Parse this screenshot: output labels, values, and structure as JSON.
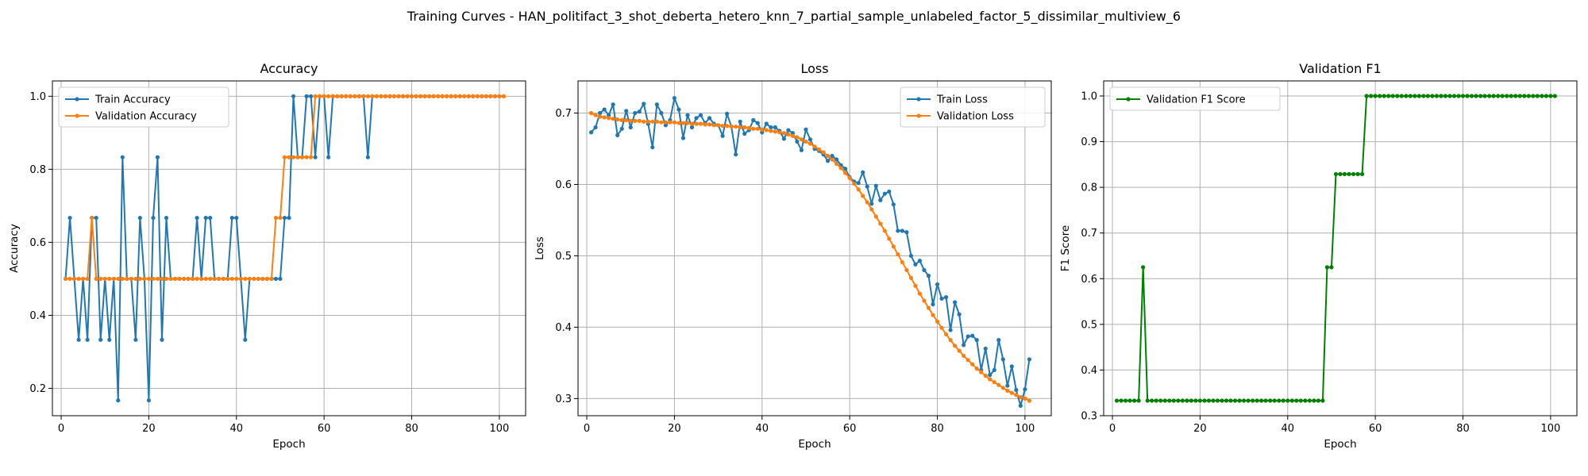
{
  "figure": {
    "suptitle": "Training Curves - HAN_politifact_3_shot_deberta_hetero_knn_7_partial_sample_unlabeled_factor_5_dissimilar_multiview_6"
  },
  "colors": {
    "blue": "#1f77b4",
    "orange": "#ff7f0e",
    "green": "#008000",
    "grid": "#b0b0b0"
  },
  "chart_data": [
    {
      "type": "line",
      "title": "Accuracy",
      "xlabel": "Epoch",
      "ylabel": "Accuracy",
      "xlim": [
        -2.0,
        106.0
      ],
      "ylim": [
        0.125,
        1.042
      ],
      "xticks": [
        0,
        20,
        40,
        60,
        80,
        100
      ],
      "yticks": [
        0.2,
        0.4,
        0.6,
        0.8,
        1.0
      ],
      "ytick_labels": [
        "0.2",
        "0.4",
        "0.6",
        "0.8",
        "1.0"
      ],
      "grid": true,
      "legend": "upper left",
      "x_start": 1,
      "series": [
        {
          "name": "Train Accuracy",
          "color": "#1f77b4",
          "values": [
            0.5,
            0.667,
            0.5,
            0.333,
            0.5,
            0.333,
            0.667,
            0.667,
            0.333,
            0.5,
            0.333,
            0.5,
            0.167,
            0.833,
            0.5,
            0.5,
            0.333,
            0.667,
            0.5,
            0.167,
            0.667,
            0.833,
            0.333,
            0.667,
            0.5,
            0.5,
            0.5,
            0.5,
            0.5,
            0.5,
            0.667,
            0.5,
            0.667,
            0.667,
            0.5,
            0.5,
            0.5,
            0.5,
            0.667,
            0.667,
            0.5,
            0.333,
            0.5,
            0.5,
            0.5,
            0.5,
            0.5,
            0.5,
            0.5,
            0.5,
            0.667,
            0.667,
            1.0,
            0.833,
            0.833,
            1.0,
            1.0,
            0.833,
            1.0,
            1.0,
            0.833,
            1.0,
            1.0,
            1.0,
            1.0,
            1.0,
            1.0,
            1.0,
            1.0,
            0.833,
            1.0,
            1.0,
            1.0,
            1.0,
            1.0,
            1.0,
            1.0,
            1.0,
            1.0,
            1.0,
            1.0,
            1.0,
            1.0,
            1.0,
            1.0,
            1.0,
            1.0,
            1.0,
            1.0,
            1.0,
            1.0,
            1.0,
            1.0,
            1.0,
            1.0,
            1.0,
            1.0,
            1.0,
            1.0,
            1.0,
            1.0
          ]
        },
        {
          "name": "Validation Accuracy",
          "color": "#ff7f0e",
          "values": [
            0.5,
            0.5,
            0.5,
            0.5,
            0.5,
            0.5,
            0.667,
            0.5,
            0.5,
            0.5,
            0.5,
            0.5,
            0.5,
            0.5,
            0.5,
            0.5,
            0.5,
            0.5,
            0.5,
            0.5,
            0.5,
            0.5,
            0.5,
            0.5,
            0.5,
            0.5,
            0.5,
            0.5,
            0.5,
            0.5,
            0.5,
            0.5,
            0.5,
            0.5,
            0.5,
            0.5,
            0.5,
            0.5,
            0.5,
            0.5,
            0.5,
            0.5,
            0.5,
            0.5,
            0.5,
            0.5,
            0.5,
            0.5,
            0.667,
            0.667,
            0.833,
            0.833,
            0.833,
            0.833,
            0.833,
            0.833,
            0.833,
            1.0,
            1.0,
            1.0,
            1.0,
            1.0,
            1.0,
            1.0,
            1.0,
            1.0,
            1.0,
            1.0,
            1.0,
            1.0,
            1.0,
            1.0,
            1.0,
            1.0,
            1.0,
            1.0,
            1.0,
            1.0,
            1.0,
            1.0,
            1.0,
            1.0,
            1.0,
            1.0,
            1.0,
            1.0,
            1.0,
            1.0,
            1.0,
            1.0,
            1.0,
            1.0,
            1.0,
            1.0,
            1.0,
            1.0,
            1.0,
            1.0,
            1.0,
            1.0,
            1.0
          ]
        }
      ]
    },
    {
      "type": "line",
      "title": "Loss",
      "xlabel": "Epoch",
      "ylabel": "Loss",
      "xlim": [
        -2.0,
        106.0
      ],
      "ylim": [
        0.276,
        0.745
      ],
      "xticks": [
        0,
        20,
        40,
        60,
        80,
        100
      ],
      "yticks": [
        0.3,
        0.4,
        0.5,
        0.6,
        0.7
      ],
      "ytick_labels": [
        "0.3",
        "0.4",
        "0.5",
        "0.6",
        "0.7"
      ],
      "grid": true,
      "legend": "upper right",
      "x_start": 1,
      "series": [
        {
          "name": "Train Loss",
          "color": "#1f77b4",
          "values": [
            0.673,
            0.68,
            0.7,
            0.705,
            0.697,
            0.712,
            0.669,
            0.678,
            0.703,
            0.68,
            0.7,
            0.702,
            0.713,
            0.685,
            0.652,
            0.712,
            0.7,
            0.683,
            0.69,
            0.721,
            0.705,
            0.665,
            0.697,
            0.68,
            0.693,
            0.697,
            0.686,
            0.693,
            0.685,
            0.683,
            0.668,
            0.699,
            0.681,
            0.642,
            0.688,
            0.671,
            0.676,
            0.69,
            0.686,
            0.673,
            0.685,
            0.68,
            0.68,
            0.675,
            0.664,
            0.676,
            0.672,
            0.66,
            0.648,
            0.677,
            0.663,
            0.65,
            0.647,
            0.642,
            0.633,
            0.64,
            0.635,
            0.627,
            0.622,
            0.61,
            0.604,
            0.602,
            0.617,
            0.597,
            0.573,
            0.598,
            0.578,
            0.587,
            0.59,
            0.572,
            0.535,
            0.535,
            0.533,
            0.5,
            0.488,
            0.493,
            0.48,
            0.472,
            0.432,
            0.46,
            0.44,
            0.442,
            0.396,
            0.435,
            0.418,
            0.375,
            0.387,
            0.388,
            0.382,
            0.34,
            0.37,
            0.333,
            0.34,
            0.382,
            0.355,
            0.318,
            0.345,
            0.312,
            0.29,
            0.313,
            0.355
          ]
        },
        {
          "name": "Validation Loss",
          "color": "#ff7f0e",
          "values": [
            0.7,
            0.697,
            0.695,
            0.694,
            0.693,
            0.692,
            0.691,
            0.69,
            0.69,
            0.689,
            0.689,
            0.689,
            0.688,
            0.688,
            0.688,
            0.688,
            0.687,
            0.687,
            0.687,
            0.687,
            0.686,
            0.686,
            0.686,
            0.685,
            0.685,
            0.685,
            0.684,
            0.684,
            0.683,
            0.683,
            0.682,
            0.682,
            0.681,
            0.681,
            0.68,
            0.68,
            0.679,
            0.678,
            0.678,
            0.677,
            0.676,
            0.675,
            0.674,
            0.673,
            0.672,
            0.67,
            0.668,
            0.666,
            0.663,
            0.66,
            0.657,
            0.653,
            0.649,
            0.645,
            0.64,
            0.635,
            0.629,
            0.623,
            0.616,
            0.609,
            0.601,
            0.593,
            0.584,
            0.575,
            0.565,
            0.555,
            0.545,
            0.535,
            0.524,
            0.513,
            0.502,
            0.491,
            0.48,
            0.469,
            0.458,
            0.447,
            0.437,
            0.427,
            0.417,
            0.408,
            0.399,
            0.39,
            0.382,
            0.374,
            0.367,
            0.36,
            0.354,
            0.348,
            0.342,
            0.337,
            0.332,
            0.327,
            0.323,
            0.319,
            0.315,
            0.311,
            0.308,
            0.305,
            0.302,
            0.3,
            0.297
          ]
        }
      ]
    },
    {
      "type": "line",
      "title": "Validation F1",
      "xlabel": "Epoch",
      "ylabel": "F1 Score",
      "xlim": [
        -2.0,
        106.0
      ],
      "ylim": [
        0.3,
        1.033
      ],
      "xticks": [
        0,
        20,
        40,
        60,
        80,
        100
      ],
      "yticks": [
        0.3,
        0.4,
        0.5,
        0.6,
        0.7,
        0.8,
        0.9,
        1.0
      ],
      "ytick_labels": [
        "0.3",
        "0.4",
        "0.5",
        "0.6",
        "0.7",
        "0.8",
        "0.9",
        "1.0"
      ],
      "grid": true,
      "legend": "upper left",
      "x_start": 1,
      "series": [
        {
          "name": "Validation F1 Score",
          "color": "#008000",
          "values": [
            0.333,
            0.333,
            0.333,
            0.333,
            0.333,
            0.333,
            0.625,
            0.333,
            0.333,
            0.333,
            0.333,
            0.333,
            0.333,
            0.333,
            0.333,
            0.333,
            0.333,
            0.333,
            0.333,
            0.333,
            0.333,
            0.333,
            0.333,
            0.333,
            0.333,
            0.333,
            0.333,
            0.333,
            0.333,
            0.333,
            0.333,
            0.333,
            0.333,
            0.333,
            0.333,
            0.333,
            0.333,
            0.333,
            0.333,
            0.333,
            0.333,
            0.333,
            0.333,
            0.333,
            0.333,
            0.333,
            0.333,
            0.333,
            0.625,
            0.625,
            0.829,
            0.829,
            0.829,
            0.829,
            0.829,
            0.829,
            0.829,
            1.0,
            1.0,
            1.0,
            1.0,
            1.0,
            1.0,
            1.0,
            1.0,
            1.0,
            1.0,
            1.0,
            1.0,
            1.0,
            1.0,
            1.0,
            1.0,
            1.0,
            1.0,
            1.0,
            1.0,
            1.0,
            1.0,
            1.0,
            1.0,
            1.0,
            1.0,
            1.0,
            1.0,
            1.0,
            1.0,
            1.0,
            1.0,
            1.0,
            1.0,
            1.0,
            1.0,
            1.0,
            1.0,
            1.0,
            1.0,
            1.0,
            1.0,
            1.0,
            1.0
          ]
        }
      ]
    }
  ]
}
